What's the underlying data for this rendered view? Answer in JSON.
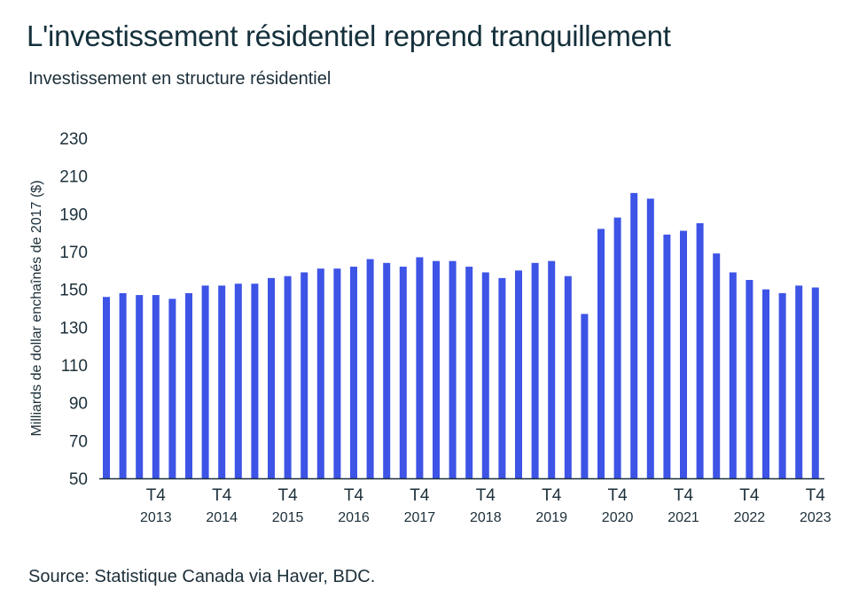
{
  "header": {
    "title": "L'investissement résidentiel reprend tranquillement",
    "subtitle": "Investissement en structure résidentiel"
  },
  "footer": {
    "source": "Source: Statistique Canada via Haver, BDC."
  },
  "colors": {
    "bar": "#3d54e6",
    "axis": "#1c2f3a"
  },
  "chart_data": {
    "type": "bar",
    "ylabel": "Milliards de dollar enchaînés de 2017 ($)",
    "ylim": [
      50,
      230
    ],
    "yticks": [
      50,
      70,
      90,
      110,
      130,
      150,
      170,
      190,
      210,
      230
    ],
    "grid": false,
    "values": [
      146,
      148,
      147,
      147,
      145,
      148,
      152,
      152,
      153,
      153,
      156,
      157,
      159,
      161,
      161,
      162,
      166,
      164,
      162,
      167,
      165,
      165,
      162,
      159,
      156,
      160,
      164,
      165,
      157,
      137,
      182,
      188,
      201,
      198,
      179,
      181,
      185,
      169,
      159,
      155,
      150,
      148,
      152,
      151
    ],
    "x_ticks": [
      {
        "index": 3,
        "quarter": "T4",
        "year": "2013"
      },
      {
        "index": 7,
        "quarter": "T4",
        "year": "2014"
      },
      {
        "index": 11,
        "quarter": "T4",
        "year": "2015"
      },
      {
        "index": 15,
        "quarter": "T4",
        "year": "2016"
      },
      {
        "index": 19,
        "quarter": "T4",
        "year": "2017"
      },
      {
        "index": 23,
        "quarter": "T4",
        "year": "2018"
      },
      {
        "index": 27,
        "quarter": "T4",
        "year": "2019"
      },
      {
        "index": 31,
        "quarter": "T4",
        "year": "2020"
      },
      {
        "index": 35,
        "quarter": "T4",
        "year": "2021"
      },
      {
        "index": 39,
        "quarter": "T4",
        "year": "2022"
      },
      {
        "index": 43,
        "quarter": "T4",
        "year": "2023"
      }
    ]
  }
}
